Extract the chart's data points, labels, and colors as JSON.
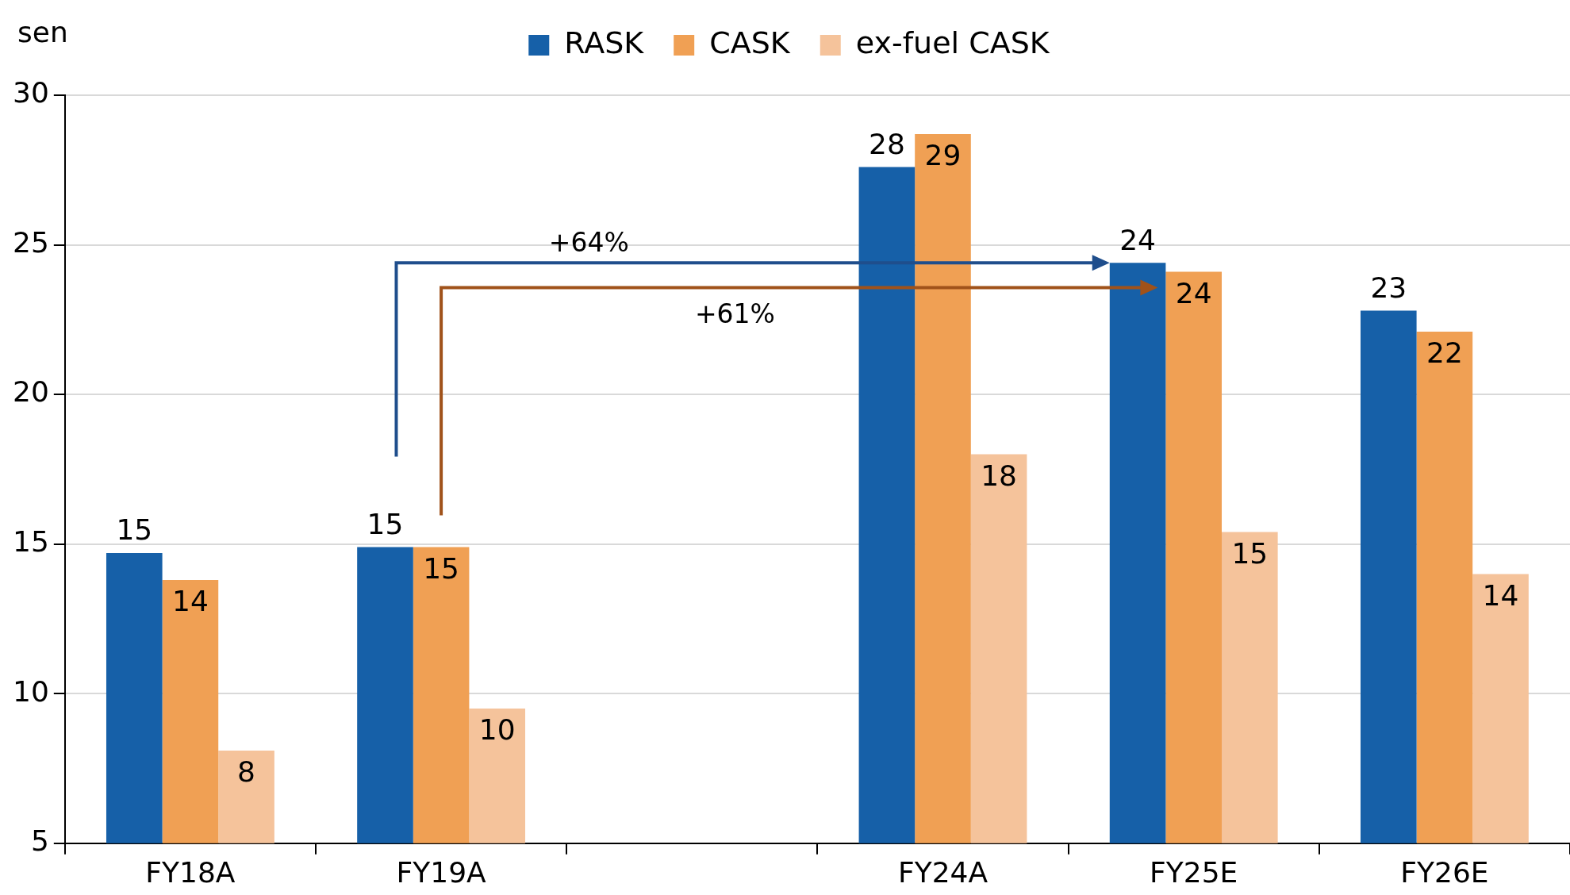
{
  "chart_data": {
    "type": "bar",
    "ylabel": "sen",
    "categories": [
      "FY18A",
      "FY19A",
      null,
      "FY24A",
      "FY25E",
      "FY26E"
    ],
    "series": [
      {
        "name": "RASK",
        "color": "#1660a8",
        "values": [
          14.7,
          14.9,
          null,
          27.6,
          24.4,
          22.8
        ],
        "value_labels": [
          "15",
          "15",
          null,
          "28",
          "24",
          "23"
        ]
      },
      {
        "name": "CASK",
        "color": "#f0a054",
        "values": [
          13.8,
          14.9,
          null,
          28.7,
          24.1,
          22.1
        ],
        "value_labels": [
          "14",
          "15",
          null,
          "29",
          "24",
          "22"
        ]
      },
      {
        "name": "ex-fuel CASK",
        "color": "#f5c39b",
        "values": [
          8.1,
          9.5,
          null,
          18.0,
          15.4,
          14.0
        ],
        "value_labels": [
          "8",
          "10",
          null,
          "18",
          "15",
          "14"
        ]
      }
    ],
    "ylim": [
      5,
      30
    ],
    "yticks": [
      5,
      10,
      15,
      20,
      25,
      30
    ],
    "grid": "y",
    "legend": "top",
    "annotations": [
      "+64%",
      "+61%"
    ]
  }
}
